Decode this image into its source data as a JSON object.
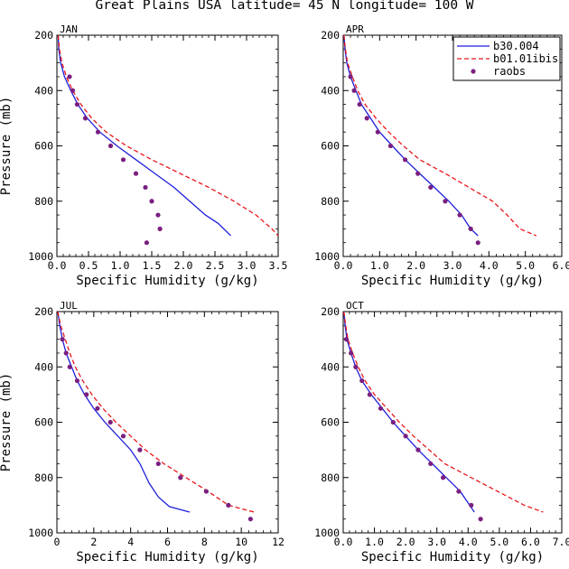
{
  "figure": {
    "title": "Great Plains USA  latitude= 45 N longitude= 100 W"
  },
  "chart_data": [
    {
      "type": "line",
      "panel": "JAN",
      "xlabel": "Specific Humidity (g/kg)",
      "ylabel": "Pressure (mb)",
      "xlim": [
        0,
        3.5
      ],
      "ylim": [
        200,
        1000
      ],
      "y_inverted": true,
      "xticks": [
        "0.0",
        "0.5",
        "1.0",
        "1.5",
        "2.0",
        "2.5",
        "3.0",
        "3.5"
      ],
      "yticks": [
        "200",
        "400",
        "600",
        "800",
        "1000"
      ],
      "legend": null,
      "series": [
        {
          "name": "b30.004",
          "style": "solid",
          "color": "#1f1fdb",
          "points": [
            [
              0.02,
              200
            ],
            [
              0.03,
              250
            ],
            [
              0.06,
              300
            ],
            [
              0.12,
              350
            ],
            [
              0.22,
              400
            ],
            [
              0.33,
              450
            ],
            [
              0.48,
              500
            ],
            [
              0.68,
              550
            ],
            [
              0.95,
              600
            ],
            [
              1.25,
              650
            ],
            [
              1.55,
              700
            ],
            [
              1.85,
              750
            ],
            [
              2.1,
              800
            ],
            [
              2.35,
              850
            ],
            [
              2.55,
              880
            ],
            [
              2.75,
              925
            ]
          ]
        },
        {
          "name": "b01.01ibis",
          "style": "dashed",
          "color": "#e8161b",
          "points": [
            [
              0.02,
              200
            ],
            [
              0.04,
              250
            ],
            [
              0.08,
              300
            ],
            [
              0.15,
              350
            ],
            [
              0.25,
              400
            ],
            [
              0.38,
              450
            ],
            [
              0.55,
              500
            ],
            [
              0.78,
              550
            ],
            [
              1.1,
              600
            ],
            [
              1.5,
              650
            ],
            [
              1.95,
              700
            ],
            [
              2.4,
              750
            ],
            [
              2.8,
              800
            ],
            [
              3.15,
              850
            ],
            [
              3.4,
              900
            ],
            [
              3.5,
              925
            ]
          ]
        },
        {
          "name": "raobs",
          "style": "markers",
          "color": "#7a1f80",
          "points": [
            [
              0.2,
              350
            ],
            [
              0.25,
              400
            ],
            [
              0.32,
              450
            ],
            [
              0.45,
              500
            ],
            [
              0.65,
              550
            ],
            [
              0.85,
              600
            ],
            [
              1.05,
              650
            ],
            [
              1.25,
              700
            ],
            [
              1.4,
              750
            ],
            [
              1.5,
              800
            ],
            [
              1.6,
              850
            ],
            [
              1.63,
              900
            ],
            [
              1.42,
              950
            ]
          ]
        }
      ]
    },
    {
      "type": "line",
      "panel": "APR",
      "xlabel": "Specific Humidity (g/kg)",
      "ylabel": "",
      "xlim": [
        0,
        6
      ],
      "ylim": [
        200,
        1000
      ],
      "y_inverted": true,
      "xticks": [
        "0.0",
        "1.0",
        "2.0",
        "3.0",
        "4.0",
        "5.0",
        "6.0"
      ],
      "yticks": [
        "200",
        "400",
        "600",
        "800",
        "1000"
      ],
      "legend": {
        "placement": "top-right",
        "entries": [
          "b30.004",
          "b01.01ibis",
          "raobs"
        ]
      },
      "series": [
        {
          "name": "b30.004",
          "style": "solid",
          "color": "#1f1fdb",
          "points": [
            [
              0.02,
              200
            ],
            [
              0.05,
              250
            ],
            [
              0.1,
              300
            ],
            [
              0.2,
              350
            ],
            [
              0.35,
              400
            ],
            [
              0.5,
              450
            ],
            [
              0.75,
              500
            ],
            [
              1.0,
              550
            ],
            [
              1.35,
              600
            ],
            [
              1.7,
              650
            ],
            [
              2.1,
              700
            ],
            [
              2.5,
              750
            ],
            [
              2.9,
              800
            ],
            [
              3.25,
              850
            ],
            [
              3.5,
              900
            ],
            [
              3.7,
              925
            ]
          ]
        },
        {
          "name": "b01.01ibis",
          "style": "dashed",
          "color": "#e8161b",
          "points": [
            [
              0.02,
              200
            ],
            [
              0.06,
              250
            ],
            [
              0.12,
              300
            ],
            [
              0.25,
              350
            ],
            [
              0.4,
              400
            ],
            [
              0.6,
              450
            ],
            [
              0.9,
              500
            ],
            [
              1.25,
              550
            ],
            [
              1.65,
              600
            ],
            [
              2.1,
              650
            ],
            [
              2.8,
              700
            ],
            [
              3.45,
              750
            ],
            [
              4.1,
              800
            ],
            [
              4.5,
              850
            ],
            [
              4.85,
              900
            ],
            [
              5.3,
              925
            ]
          ]
        },
        {
          "name": "raobs",
          "style": "markers",
          "color": "#7a1f80",
          "points": [
            [
              0.2,
              350
            ],
            [
              0.3,
              400
            ],
            [
              0.45,
              450
            ],
            [
              0.65,
              500
            ],
            [
              0.95,
              550
            ],
            [
              1.3,
              600
            ],
            [
              1.7,
              650
            ],
            [
              2.05,
              700
            ],
            [
              2.4,
              750
            ],
            [
              2.8,
              800
            ],
            [
              3.2,
              850
            ],
            [
              3.5,
              900
            ],
            [
              3.7,
              950
            ]
          ]
        }
      ]
    },
    {
      "type": "line",
      "panel": "JUL",
      "xlabel": "Specific Humidity (g/kg)",
      "ylabel": "Pressure (mb)",
      "xlim": [
        0,
        12
      ],
      "ylim": [
        200,
        1000
      ],
      "y_inverted": true,
      "xticks": [
        "0",
        "2",
        "4",
        "6",
        "8",
        "10",
        "12"
      ],
      "yticks": [
        "200",
        "400",
        "600",
        "800",
        "1000"
      ],
      "legend": null,
      "series": [
        {
          "name": "b30.004",
          "style": "solid",
          "color": "#1f1fdb",
          "points": [
            [
              0.05,
              200
            ],
            [
              0.15,
              250
            ],
            [
              0.3,
              300
            ],
            [
              0.5,
              350
            ],
            [
              0.8,
              400
            ],
            [
              1.1,
              450
            ],
            [
              1.5,
              500
            ],
            [
              2.0,
              550
            ],
            [
              2.6,
              600
            ],
            [
              3.3,
              650
            ],
            [
              4.0,
              700
            ],
            [
              4.5,
              750
            ],
            [
              5.0,
              820
            ],
            [
              5.5,
              870
            ],
            [
              6.1,
              905
            ],
            [
              7.2,
              925
            ]
          ]
        },
        {
          "name": "b01.01ibis",
          "style": "dashed",
          "color": "#e8161b",
          "points": [
            [
              0.05,
              200
            ],
            [
              0.2,
              250
            ],
            [
              0.45,
              300
            ],
            [
              0.7,
              350
            ],
            [
              1.0,
              400
            ],
            [
              1.4,
              450
            ],
            [
              1.9,
              500
            ],
            [
              2.5,
              550
            ],
            [
              3.2,
              600
            ],
            [
              4.0,
              650
            ],
            [
              4.8,
              700
            ],
            [
              5.8,
              750
            ],
            [
              7.0,
              800
            ],
            [
              8.2,
              850
            ],
            [
              9.3,
              900
            ],
            [
              10.7,
              925
            ]
          ]
        },
        {
          "name": "raobs",
          "style": "markers",
          "color": "#7a1f80",
          "points": [
            [
              0.3,
              300
            ],
            [
              0.5,
              350
            ],
            [
              0.7,
              400
            ],
            [
              1.1,
              450
            ],
            [
              1.6,
              500
            ],
            [
              2.2,
              550
            ],
            [
              2.9,
              600
            ],
            [
              3.6,
              650
            ],
            [
              4.5,
              700
            ],
            [
              5.5,
              750
            ],
            [
              6.7,
              800
            ],
            [
              8.1,
              850
            ],
            [
              9.3,
              900
            ],
            [
              10.5,
              950
            ]
          ]
        }
      ]
    },
    {
      "type": "line",
      "panel": "OCT",
      "xlabel": "Specific Humidity (g/kg)",
      "ylabel": "",
      "xlim": [
        0,
        7
      ],
      "ylim": [
        200,
        1000
      ],
      "y_inverted": true,
      "xticks": [
        "0.0",
        "1.0",
        "2.0",
        "3.0",
        "4.0",
        "5.0",
        "6.0",
        "7.0"
      ],
      "yticks": [
        "200",
        "400",
        "600",
        "800",
        "1000"
      ],
      "legend": null,
      "series": [
        {
          "name": "b30.004",
          "style": "solid",
          "color": "#1f1fdb",
          "points": [
            [
              0.02,
              200
            ],
            [
              0.06,
              250
            ],
            [
              0.12,
              300
            ],
            [
              0.25,
              350
            ],
            [
              0.4,
              400
            ],
            [
              0.6,
              450
            ],
            [
              0.9,
              500
            ],
            [
              1.25,
              550
            ],
            [
              1.6,
              600
            ],
            [
              2.0,
              650
            ],
            [
              2.4,
              700
            ],
            [
              2.85,
              750
            ],
            [
              3.3,
              800
            ],
            [
              3.75,
              850
            ],
            [
              4.05,
              900
            ],
            [
              4.2,
              925
            ]
          ]
        },
        {
          "name": "b01.01ibis",
          "style": "dashed",
          "color": "#e8161b",
          "points": [
            [
              0.02,
              200
            ],
            [
              0.08,
              250
            ],
            [
              0.15,
              300
            ],
            [
              0.3,
              350
            ],
            [
              0.48,
              400
            ],
            [
              0.7,
              450
            ],
            [
              1.0,
              500
            ],
            [
              1.4,
              550
            ],
            [
              1.8,
              600
            ],
            [
              2.25,
              650
            ],
            [
              2.75,
              700
            ],
            [
              3.25,
              750
            ],
            [
              4.1,
              800
            ],
            [
              4.95,
              850
            ],
            [
              5.8,
              900
            ],
            [
              6.4,
              925
            ]
          ]
        },
        {
          "name": "raobs",
          "style": "markers",
          "color": "#7a1f80",
          "points": [
            [
              0.1,
              300
            ],
            [
              0.25,
              350
            ],
            [
              0.4,
              400
            ],
            [
              0.6,
              450
            ],
            [
              0.85,
              500
            ],
            [
              1.2,
              550
            ],
            [
              1.6,
              600
            ],
            [
              2.0,
              650
            ],
            [
              2.4,
              700
            ],
            [
              2.8,
              750
            ],
            [
              3.2,
              800
            ],
            [
              3.7,
              850
            ],
            [
              4.1,
              900
            ],
            [
              4.4,
              950
            ]
          ]
        }
      ]
    }
  ]
}
